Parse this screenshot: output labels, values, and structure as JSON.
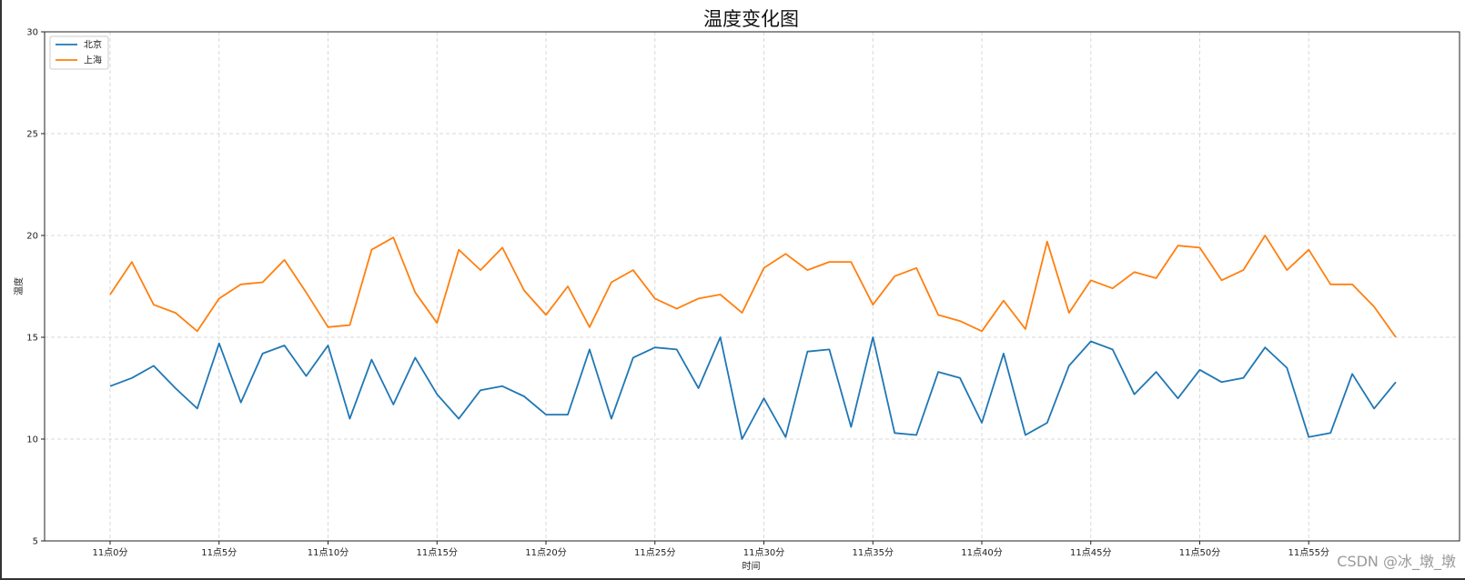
{
  "chart_data": {
    "type": "line",
    "title": "温度变化图",
    "xlabel": "时间",
    "ylabel": "温度",
    "ylim": [
      5,
      30
    ],
    "yticks": [
      5,
      10,
      15,
      20,
      25,
      30
    ],
    "x_tick_labels": [
      "11点0分",
      "11点5分",
      "11点10分",
      "11点15分",
      "11点20分",
      "11点25分",
      "11点30分",
      "11点35分",
      "11点40分",
      "11点45分",
      "11点50分",
      "11点55分"
    ],
    "x_tick_minutes": [
      0,
      5,
      10,
      15,
      20,
      25,
      30,
      35,
      40,
      45,
      50,
      55
    ],
    "x_minutes": [
      0,
      1,
      2,
      3,
      4,
      5,
      6,
      7,
      8,
      9,
      10,
      11,
      12,
      13,
      14,
      15,
      16,
      17,
      18,
      19,
      20,
      21,
      22,
      23,
      24,
      25,
      26,
      27,
      28,
      29,
      30,
      31,
      32,
      33,
      34,
      35,
      36,
      37,
      38,
      39,
      40,
      41,
      42,
      43,
      44,
      45,
      46,
      47,
      48,
      49,
      50,
      51,
      52,
      53,
      54,
      55,
      56,
      57,
      58,
      59
    ],
    "grid": true,
    "legend_position": "top-left",
    "series": [
      {
        "name": "北京",
        "color": "#1f77b4",
        "values": [
          12.6,
          13.0,
          13.6,
          12.5,
          11.5,
          14.7,
          11.8,
          14.2,
          14.6,
          13.1,
          14.6,
          11.0,
          13.9,
          11.7,
          14.0,
          12.2,
          11.0,
          12.4,
          12.6,
          12.1,
          11.2,
          11.2,
          14.4,
          11.0,
          14.0,
          14.5,
          14.4,
          12.5,
          15.0,
          10.0,
          12.0,
          10.1,
          14.3,
          14.4,
          10.6,
          15.0,
          10.3,
          10.2,
          13.3,
          13.0,
          10.8,
          14.2,
          10.2,
          10.8,
          13.6,
          14.8,
          14.4,
          12.2,
          13.3,
          12.0,
          13.4,
          12.8,
          13.0,
          14.5,
          13.5,
          10.1,
          10.3,
          13.2,
          11.5,
          12.8
        ]
      },
      {
        "name": "上海",
        "color": "#ff7f0e",
        "values": [
          17.1,
          18.7,
          16.6,
          16.2,
          15.3,
          16.9,
          17.6,
          17.7,
          18.8,
          17.2,
          15.5,
          15.6,
          19.3,
          19.9,
          17.2,
          15.7,
          19.3,
          18.3,
          19.4,
          17.3,
          16.1,
          17.5,
          15.5,
          17.7,
          18.3,
          16.9,
          16.4,
          16.9,
          17.1,
          16.2,
          18.4,
          19.1,
          18.3,
          18.7,
          18.7,
          16.6,
          18.0,
          18.4,
          16.1,
          15.8,
          15.3,
          16.8,
          15.4,
          19.7,
          16.2,
          17.8,
          17.4,
          18.2,
          17.9,
          19.5,
          19.4,
          17.8,
          18.3,
          20.0,
          18.3,
          19.3,
          17.6,
          17.6,
          16.5,
          15.0
        ]
      }
    ]
  },
  "watermark": "CSDN @冰_墩_墩"
}
